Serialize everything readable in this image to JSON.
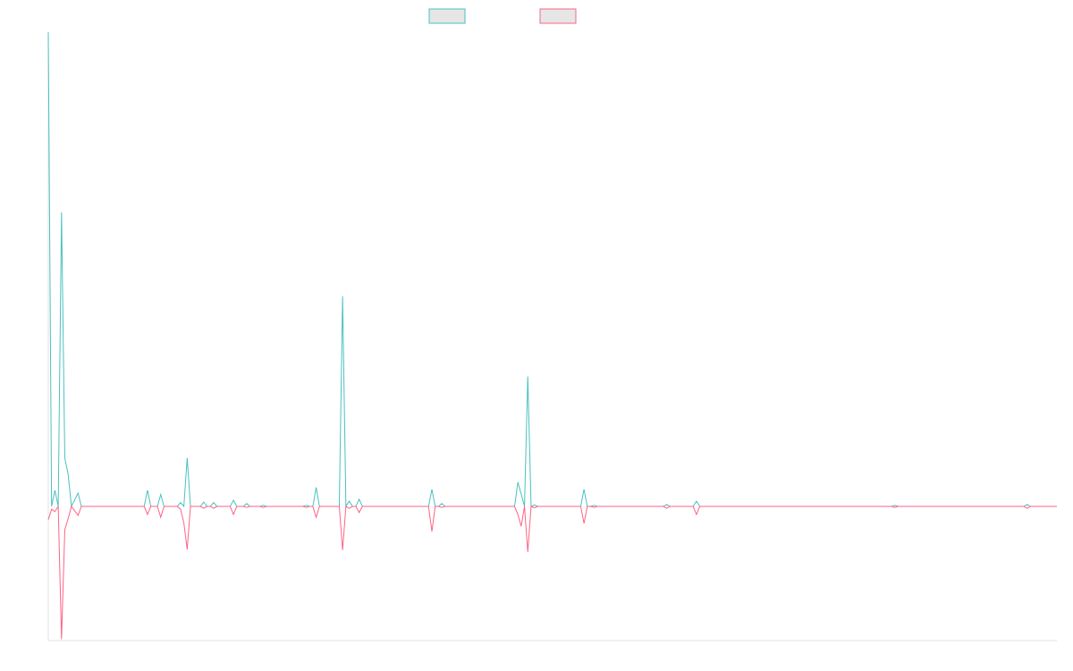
{
  "chart_data": {
    "type": "line",
    "x": [
      0,
      1,
      2,
      3,
      4,
      5,
      6,
      7,
      9,
      10,
      29,
      30,
      31,
      33,
      34,
      35,
      39,
      40,
      41,
      42,
      43,
      46,
      47,
      48,
      49,
      50,
      51,
      55,
      56,
      57,
      59,
      60,
      61,
      64,
      65,
      66,
      77,
      78,
      79,
      80,
      81,
      82,
      88,
      89,
      90,
      91,
      92,
      93,
      94,
      95,
      115,
      116,
      117,
      118,
      119,
      120,
      141,
      142,
      143,
      144,
      145,
      146,
      147,
      148,
      161,
      162,
      163,
      164,
      165,
      166,
      186,
      187,
      188,
      195,
      196,
      197,
      255,
      256,
      257,
      295,
      296,
      297,
      305
    ],
    "series": [
      {
        "color": "#4bc0c0",
        "values": [
          100,
          0,
          3.4,
          0,
          62,
          10.2,
          6.8,
          0,
          2.8,
          0,
          0,
          3.4,
          0,
          0,
          2.5,
          0,
          0,
          0.8,
          0,
          10.2,
          0,
          0,
          0.9,
          0,
          0,
          0.8,
          0,
          0,
          1.3,
          0,
          0,
          0.6,
          0,
          0,
          0.2,
          0,
          0,
          0.2,
          0,
          0,
          4,
          0,
          0,
          44.3,
          0,
          1.1,
          0,
          0,
          1.5,
          0,
          0,
          3.6,
          0,
          0,
          0.6,
          0,
          0,
          5.1,
          2.6,
          0,
          27.4,
          0,
          0.3,
          0,
          0,
          3.6,
          0,
          0,
          0.2,
          0,
          0,
          0.4,
          0,
          0,
          1.1,
          0,
          0,
          0.2,
          0,
          0,
          0.4,
          0,
          0
        ]
      },
      {
        "color": "#ff6384",
        "values": [
          -2.8,
          -0.6,
          -1.1,
          0,
          -28,
          -4.9,
          -2.6,
          0,
          -1.9,
          0,
          0,
          -1.7,
          0,
          0,
          -2.3,
          0,
          0,
          -0.6,
          -3.5,
          -9.1,
          0,
          0,
          -0.4,
          0,
          0,
          -0.4,
          0,
          0,
          -1.7,
          0,
          0,
          -0.2,
          0,
          0,
          -0.2,
          0,
          0,
          -0.2,
          0,
          0,
          -2.3,
          0,
          0,
          -9.2,
          0,
          -0.4,
          0,
          0,
          -1.3,
          0,
          0,
          -5.3,
          0,
          0,
          -0.2,
          0,
          0,
          -1.7,
          -4.2,
          0,
          -9.6,
          0,
          -0.3,
          0,
          0,
          -3.6,
          0,
          0,
          -0.2,
          0,
          0,
          -0.4,
          0,
          0,
          -1.7,
          0,
          0,
          -0.2,
          0,
          0,
          -0.4,
          0,
          0
        ]
      }
    ],
    "xlim": [
      0,
      305
    ],
    "ylim": [
      -28.3,
      100
    ],
    "legend": "top",
    "grid": false
  }
}
